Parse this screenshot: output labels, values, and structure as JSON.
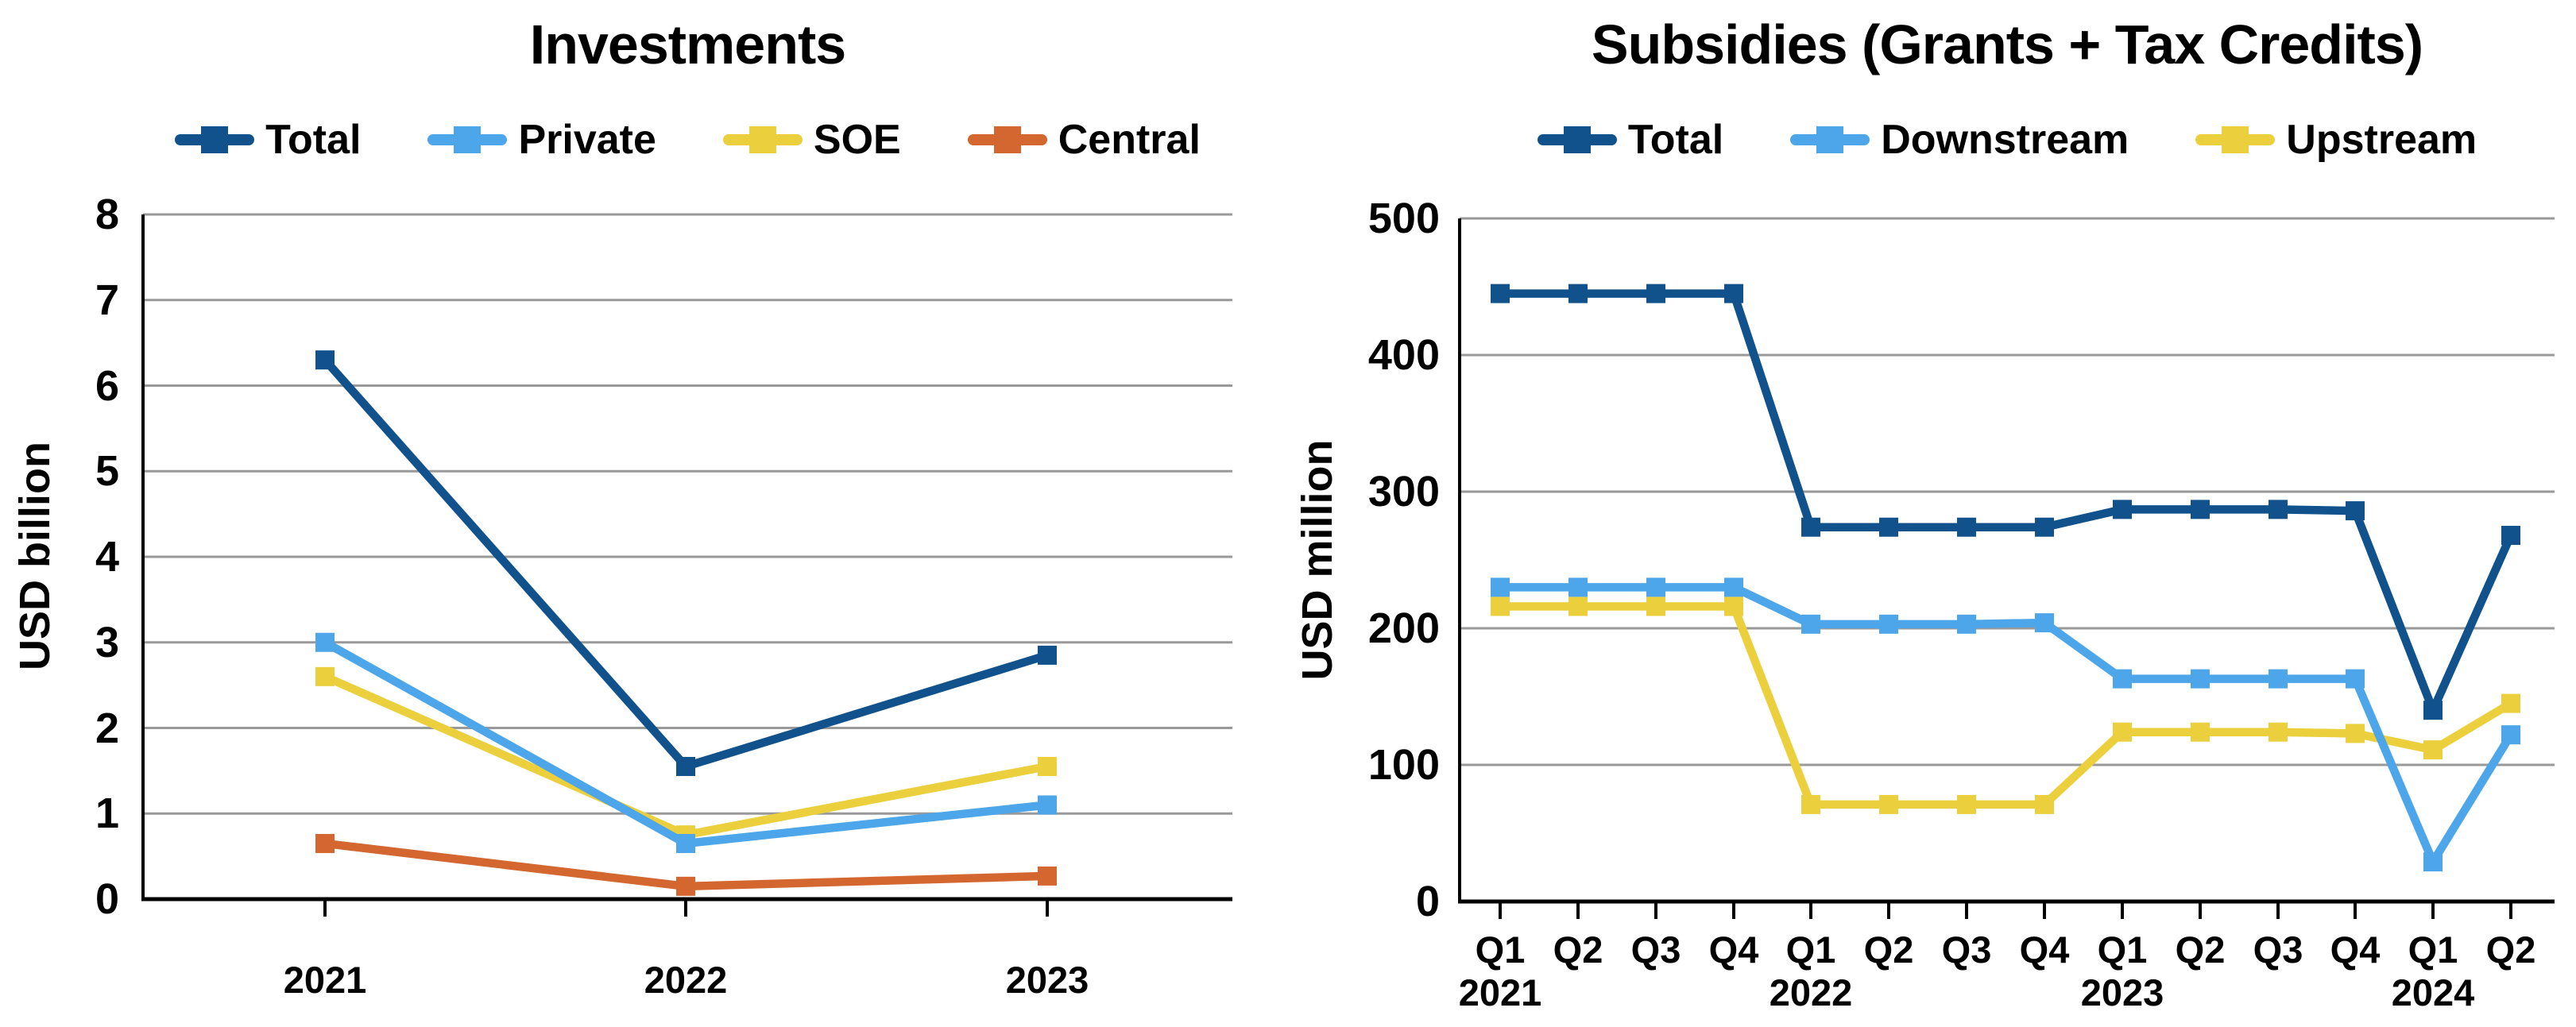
{
  "page": {
    "background": "#ffffff"
  },
  "chart_data": [
    {
      "type": "line",
      "title": "Investments",
      "ylabel": "USD billion",
      "xlabel": "",
      "ylim": [
        0,
        8
      ],
      "yticks": [
        0,
        1,
        2,
        3,
        4,
        5,
        6,
        7,
        8
      ],
      "categories": [
        "2021",
        "2022",
        "2023"
      ],
      "grid": "horizontal",
      "legend_position": "top",
      "series": [
        {
          "name": "Total",
          "color": "#11528C",
          "values": [
            6.3,
            1.55,
            2.85
          ]
        },
        {
          "name": "Private",
          "color": "#4CA6E9",
          "values": [
            3.0,
            0.65,
            1.1
          ]
        },
        {
          "name": "SOE",
          "color": "#EBCF3C",
          "values": [
            2.6,
            0.75,
            1.55
          ]
        },
        {
          "name": "Central",
          "color": "#D4662F",
          "values": [
            0.65,
            0.15,
            0.27
          ]
        }
      ]
    },
    {
      "type": "line",
      "title": "Subsidies (Grants + Tax Credits)",
      "ylabel": "USD million",
      "xlabel": "",
      "ylim": [
        0,
        500
      ],
      "yticks": [
        0,
        100,
        200,
        300,
        400,
        500
      ],
      "categories": [
        "Q1",
        "Q2",
        "Q3",
        "Q4",
        "Q1",
        "Q2",
        "Q3",
        "Q4",
        "Q1",
        "Q2",
        "Q3",
        "Q4",
        "Q1",
        "Q2"
      ],
      "x_year_labels": [
        {
          "label": "2021",
          "tick_index": 0
        },
        {
          "label": "2022",
          "tick_index": 4
        },
        {
          "label": "2023",
          "tick_index": 8
        },
        {
          "label": "2024",
          "tick_index": 12
        }
      ],
      "grid": "horizontal",
      "legend_position": "top",
      "series": [
        {
          "name": "Total",
          "color": "#11528C",
          "values": [
            445,
            445,
            445,
            445,
            274,
            274,
            274,
            274,
            287,
            287,
            287,
            286,
            140,
            268
          ]
        },
        {
          "name": "Downstream",
          "color": "#4CA6E9",
          "values": [
            230,
            230,
            230,
            230,
            203,
            203,
            203,
            204,
            163,
            163,
            163,
            163,
            29,
            122
          ]
        },
        {
          "name": "Upstream",
          "color": "#EBCF3C",
          "values": [
            216,
            216,
            216,
            216,
            71,
            71,
            71,
            71,
            124,
            124,
            124,
            123,
            111,
            145
          ]
        }
      ]
    }
  ]
}
